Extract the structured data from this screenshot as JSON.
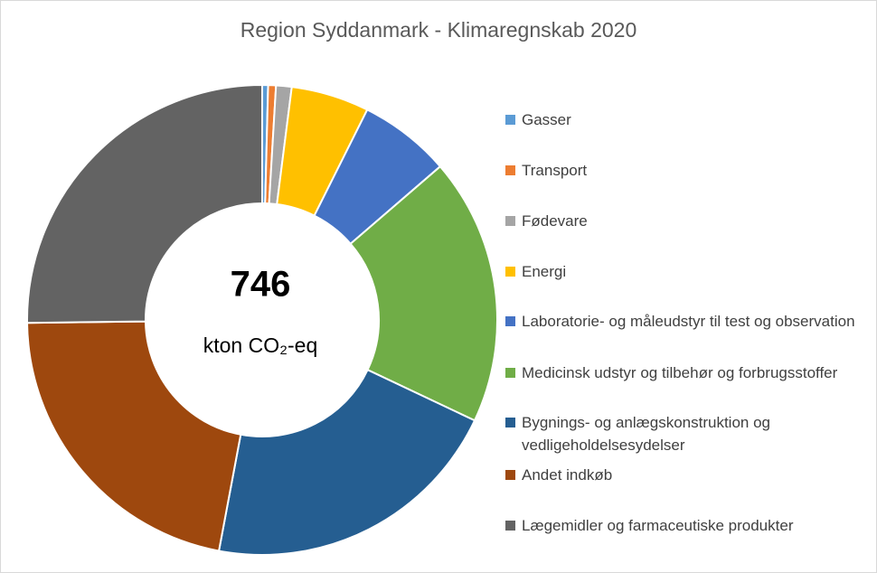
{
  "chart_data": {
    "type": "donut",
    "title": "Region Syddanmark - Klimaregnskab 2020",
    "center_value": 746,
    "center_label": "kton CO₂-eq",
    "categories": [
      "Gasser",
      "Transport",
      "Fødevare",
      "Energi",
      "Laboratorie- og måleudstyr til test og observation",
      "Medicinsk udstyr og tilbehør og forbrugsstoffer",
      "Bygnings- og anlægskonstruktion og vedligeholdelsesydelser",
      "Andet indkøb",
      "Lægemidler og farmaceutiske produkter"
    ],
    "values": [
      3,
      4,
      8,
      40,
      47,
      137,
      156,
      163,
      188
    ],
    "colors": [
      "#5b9bd5",
      "#ed7d31",
      "#a5a5a5",
      "#ffc000",
      "#4472c4",
      "#70ad47",
      "#255e91",
      "#9e480e",
      "#636363"
    ],
    "legend": "right"
  }
}
